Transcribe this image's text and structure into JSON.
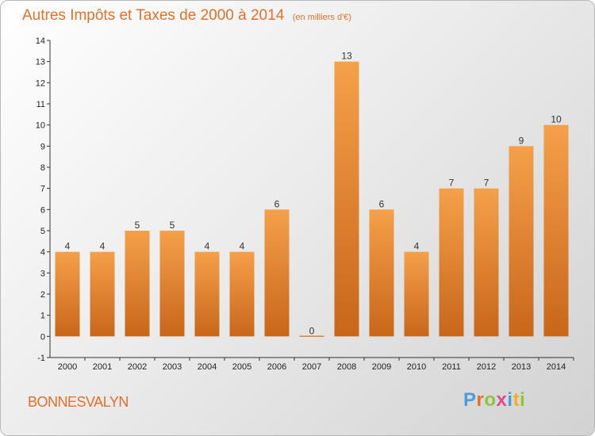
{
  "header": {
    "title": "Autres Impôts et Taxes de 2000 à 2014",
    "subtitle": "(en milliers d'€)"
  },
  "footer": {
    "commune": "BONNESVALYN",
    "logo": "Proxiti",
    "logo_colors": [
      "#4a9de0",
      "#e0702a",
      "#8cc63f",
      "#e04a8c",
      "#4a9de0",
      "#f2b01e",
      "#8cc63f"
    ]
  },
  "colors": {
    "bar_light": "#f5a04a",
    "bar_dark": "#c8661a",
    "accent": "#e0702a"
  },
  "chart_data": {
    "type": "bar",
    "title": "Autres Impôts et Taxes de 2000 à 2014",
    "subtitle": "(en milliers d'€)",
    "categories": [
      "2000",
      "2001",
      "2002",
      "2003",
      "2004",
      "2005",
      "2006",
      "2007",
      "2008",
      "2009",
      "2010",
      "2011",
      "2012",
      "2013",
      "2014"
    ],
    "values": [
      4,
      4,
      5,
      5,
      4,
      4,
      6,
      0,
      13,
      6,
      4,
      7,
      7,
      9,
      10
    ],
    "ylim": [
      -1,
      14
    ],
    "yticks": [
      -1,
      0,
      1,
      2,
      3,
      4,
      5,
      6,
      7,
      8,
      9,
      10,
      11,
      12,
      13,
      14
    ],
    "grid": false,
    "legend": "none"
  }
}
